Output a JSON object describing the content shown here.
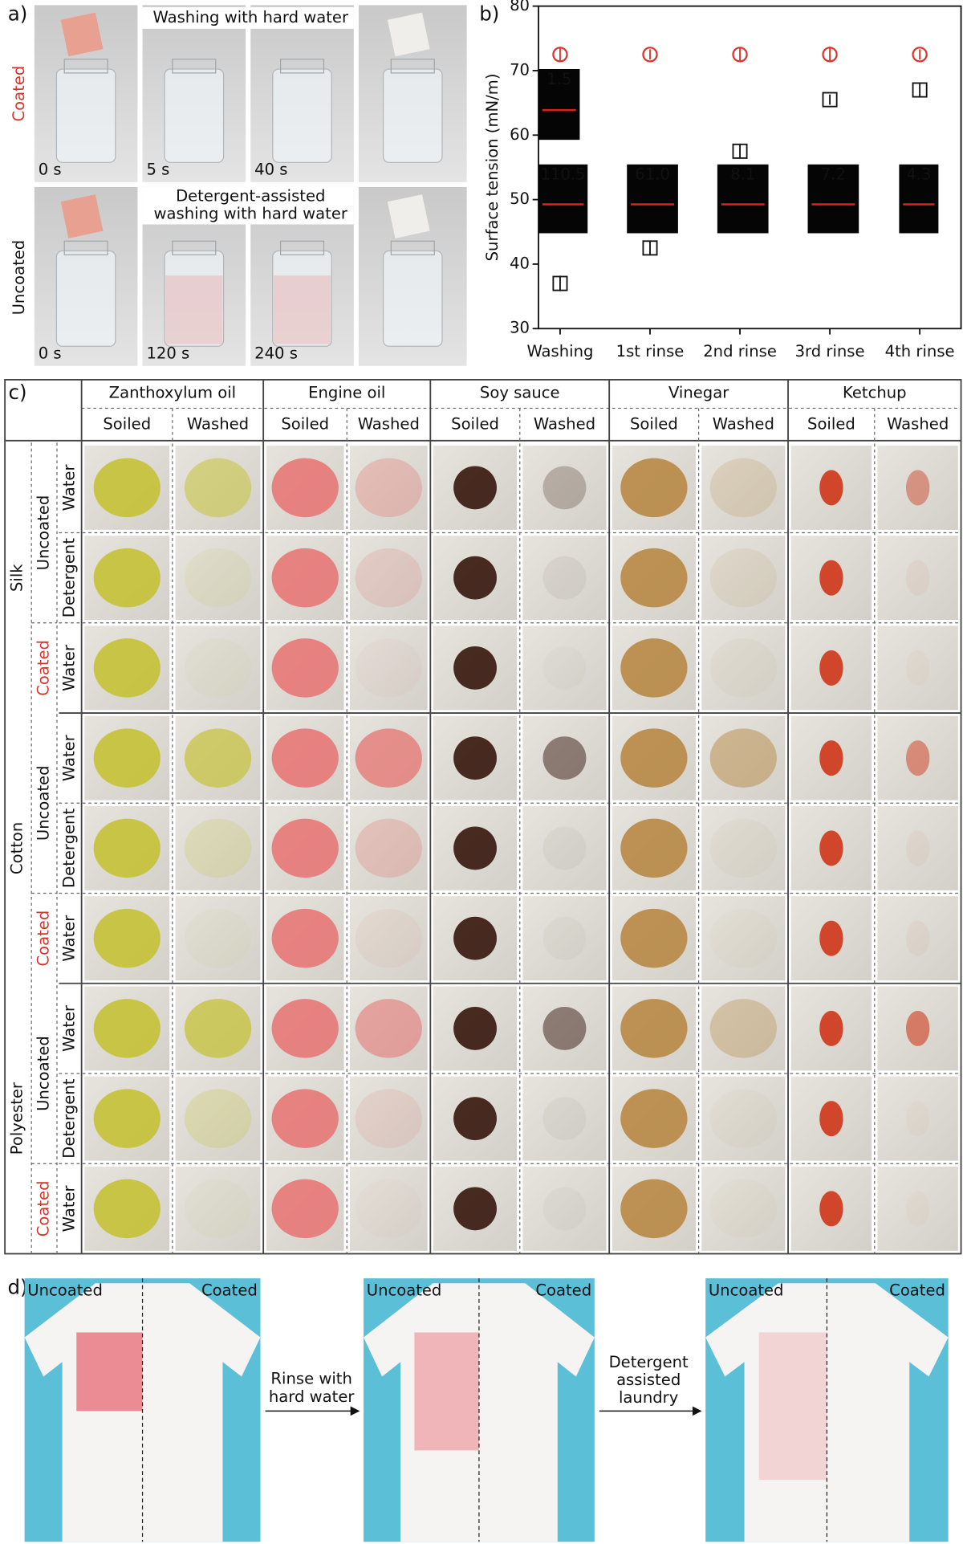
{
  "panel_a": {
    "label": "a)",
    "rows": [
      "Coated",
      "Uncoated"
    ],
    "captions": [
      "Washing with hard water",
      "Detergent-assisted",
      "washing with hard water"
    ],
    "times": [
      [
        "0 s",
        "5 s",
        "40 s"
      ],
      [
        "0 s",
        "120 s",
        "240 s"
      ]
    ]
  },
  "chart_data": {
    "type": "scatter",
    "label": "b)",
    "ylabel": "Surface tension (mN/m)",
    "categories": [
      "Washing",
      "1st rinse",
      "2nd rinse",
      "3rd rinse",
      "4th rinse"
    ],
    "ylim": [
      30,
      80
    ],
    "yticks": [
      30,
      40,
      50,
      60,
      70,
      80
    ],
    "series": [
      {
        "color": "#d9342b",
        "values": [
          72.5,
          72.5,
          72.5,
          72.5,
          72.5
        ],
        "errors": [
          1,
          0.8,
          1,
          1.2,
          0.8
        ]
      },
      {
        "color": "#111111",
        "values": [
          37,
          42.5,
          57.5,
          65.5,
          67
        ],
        "errors": [
          1.2,
          1,
          1,
          0.8,
          1
        ]
      }
    ],
    "inset_labels": [
      "1.5",
      "110.5",
      "61.0",
      "8.1",
      "7.2",
      "4.3"
    ]
  },
  "panel_c": {
    "label": "c)",
    "stains": [
      "Zanthoxylum oil",
      "Engine oil",
      "Soy sauce",
      "Vinegar",
      "Ketchup"
    ],
    "states": [
      "Soiled",
      "Washed"
    ],
    "fabrics": [
      "Silk",
      "Cotton",
      "Polyester"
    ],
    "coatings": [
      "Uncoated",
      "Coated"
    ],
    "washes": [
      "Water",
      "Detergent",
      "Water"
    ]
  },
  "panel_d": {
    "label": "d)",
    "sides": [
      "Uncoated",
      "Coated"
    ],
    "steps": [
      [
        "Rinse with",
        "hard water"
      ],
      [
        "Detergent",
        "assisted",
        "laundry"
      ]
    ]
  }
}
